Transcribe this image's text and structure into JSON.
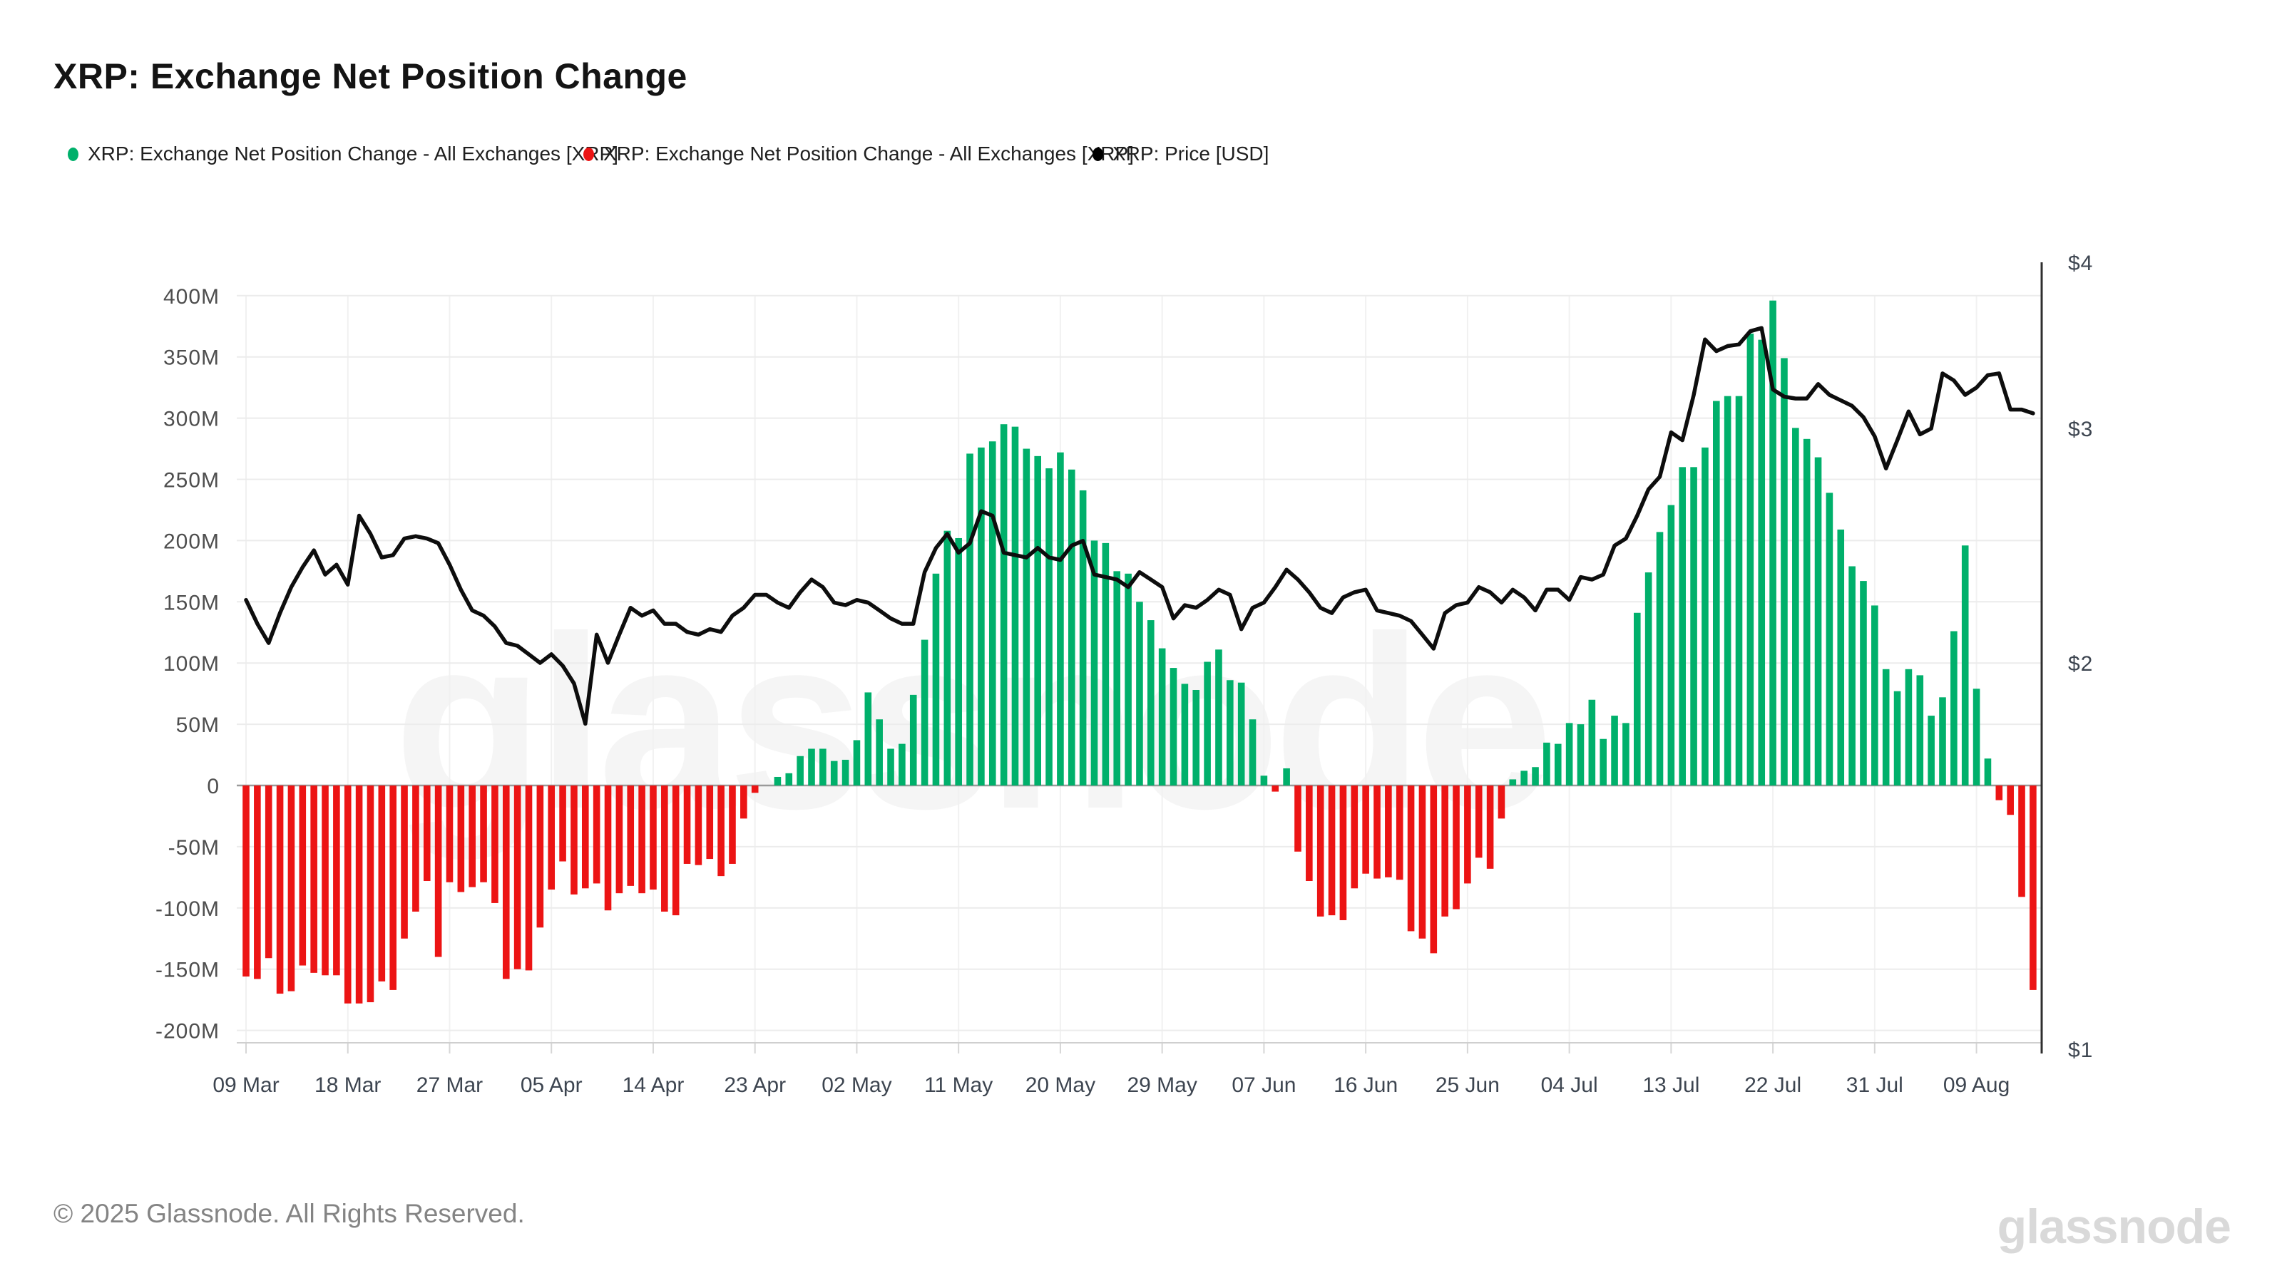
{
  "header": {
    "title": "XRP: Exchange Net Position Change"
  },
  "legend": [
    {
      "label": "XRP: Exchange Net Position Change - All Exchanges [XRP]",
      "color": "#00b06b"
    },
    {
      "label": "XRP: Exchange Net Position Change - All Exchanges [XRP]",
      "color": "#ec1414"
    },
    {
      "label": "XRP: Price [USD]",
      "color": "#000000"
    }
  ],
  "watermark": "glassnode",
  "footer": {
    "copyright": "© 2025 Glassnode. All Rights Reserved.",
    "logo": "glassnode"
  },
  "chart_data": {
    "type": "bar",
    "title": "XRP: Exchange Net Position Change",
    "start_date": "09 Mar",
    "end_date": "14 Aug",
    "x_tick_labels": [
      "09 Mar",
      "18 Mar",
      "27 Mar",
      "05 Apr",
      "14 Apr",
      "23 Apr",
      "02 May",
      "11 May",
      "20 May",
      "29 May",
      "07 Jun",
      "16 Jun",
      "25 Jun",
      "04 Jul",
      "13 Jul",
      "22 Jul",
      "31 Jul",
      "09 Aug"
    ],
    "x_tick_every_n_bars": 9,
    "left_axis": {
      "unit": "XRP (millions)",
      "min": -200,
      "max": 400,
      "tick_values": [
        400,
        350,
        300,
        250,
        200,
        150,
        100,
        50,
        0,
        -50,
        -100,
        -150,
        -200
      ],
      "tick_labels": [
        "400M",
        "350M",
        "300M",
        "250M",
        "200M",
        "150M",
        "100M",
        "50M",
        "0",
        "-50M",
        "-100M",
        "-150M",
        "-200M"
      ]
    },
    "right_axis": {
      "unit": "USD",
      "scale": "log",
      "min": 1,
      "max": 4,
      "tick_values": [
        4,
        3,
        2,
        1
      ],
      "tick_labels": [
        "$4",
        "$3",
        "$2",
        "$1"
      ]
    },
    "grid": true,
    "legend_position": "top",
    "series": [
      {
        "name": "XRP: Exchange Net Position Change - All Exchanges [XRP]",
        "type": "bar",
        "unit": "M XRP",
        "positive_color": "#00b06b",
        "negative_color": "#ec1414",
        "values": [
          -156,
          -158,
          -141,
          -170,
          -168,
          -147,
          -153,
          -155,
          -155,
          -178,
          -178,
          -177,
          -160,
          -167,
          -125,
          -103,
          -78,
          -140,
          -79,
          -87,
          -83,
          -79,
          -96,
          -158,
          -150,
          -151,
          -116,
          -85,
          -62,
          -89,
          -84,
          -80,
          -102,
          -88,
          -82,
          -88,
          -85,
          -103,
          -106,
          -64,
          -65,
          -60,
          -74,
          -64,
          -27,
          -6,
          0,
          7,
          10,
          24,
          30,
          30,
          20,
          21,
          37,
          76,
          54,
          30,
          34,
          74,
          119,
          173,
          208,
          202,
          271,
          276,
          281,
          295,
          293,
          275,
          269,
          259,
          272,
          258,
          241,
          200,
          198,
          175,
          173,
          150,
          135,
          112,
          96,
          83,
          78,
          101,
          111,
          86,
          84,
          54,
          8,
          -5,
          14,
          -54,
          -78,
          -107,
          -106,
          -110,
          -84,
          -72,
          -76,
          -75,
          -77,
          -119,
          -125,
          -137,
          -107,
          -101,
          -80,
          -59,
          -68,
          -27,
          5,
          12,
          15,
          35,
          34,
          51,
          50,
          70,
          38,
          57,
          51,
          141,
          174,
          207,
          229,
          260,
          260,
          276,
          314,
          318,
          318,
          369,
          364,
          396,
          349,
          292,
          283,
          268,
          239,
          209,
          179,
          167,
          147,
          95,
          77,
          95,
          90,
          57,
          72,
          126,
          196,
          79,
          22,
          -12,
          -24,
          -91,
          -167
        ]
      },
      {
        "name": "XRP: Price [USD]",
        "type": "line",
        "unit": "USD",
        "color": "#0d0d0d",
        "values": [
          2.23,
          2.14,
          2.07,
          2.18,
          2.28,
          2.36,
          2.43,
          2.33,
          2.37,
          2.29,
          2.58,
          2.5,
          2.4,
          2.41,
          2.48,
          2.49,
          2.48,
          2.46,
          2.37,
          2.27,
          2.19,
          2.17,
          2.13,
          2.07,
          2.06,
          2.03,
          2.0,
          2.03,
          1.99,
          1.93,
          1.8,
          2.1,
          2.0,
          2.1,
          2.2,
          2.17,
          2.19,
          2.14,
          2.14,
          2.11,
          2.1,
          2.12,
          2.11,
          2.17,
          2.2,
          2.25,
          2.25,
          2.22,
          2.2,
          2.26,
          2.31,
          2.28,
          2.22,
          2.21,
          2.23,
          2.22,
          2.19,
          2.16,
          2.14,
          2.14,
          2.34,
          2.44,
          2.5,
          2.42,
          2.46,
          2.6,
          2.58,
          2.42,
          2.41,
          2.4,
          2.44,
          2.4,
          2.39,
          2.45,
          2.47,
          2.33,
          2.32,
          2.31,
          2.28,
          2.34,
          2.31,
          2.28,
          2.16,
          2.21,
          2.2,
          2.23,
          2.27,
          2.25,
          2.12,
          2.2,
          2.22,
          2.28,
          2.35,
          2.31,
          2.26,
          2.2,
          2.18,
          2.24,
          2.26,
          2.27,
          2.19,
          2.18,
          2.17,
          2.15,
          2.1,
          2.05,
          2.18,
          2.21,
          2.22,
          2.28,
          2.26,
          2.22,
          2.27,
          2.24,
          2.19,
          2.27,
          2.27,
          2.23,
          2.32,
          2.31,
          2.33,
          2.45,
          2.48,
          2.58,
          2.7,
          2.76,
          2.98,
          2.94,
          3.18,
          3.5,
          3.43,
          3.46,
          3.47,
          3.55,
          3.57,
          3.21,
          3.17,
          3.16,
          3.16,
          3.24,
          3.18,
          3.15,
          3.12,
          3.06,
          2.96,
          2.8,
          2.94,
          3.09,
          2.97,
          3.0,
          3.3,
          3.26,
          3.18,
          3.22,
          3.29,
          3.3,
          3.1,
          3.1,
          3.08
        ]
      }
    ]
  }
}
